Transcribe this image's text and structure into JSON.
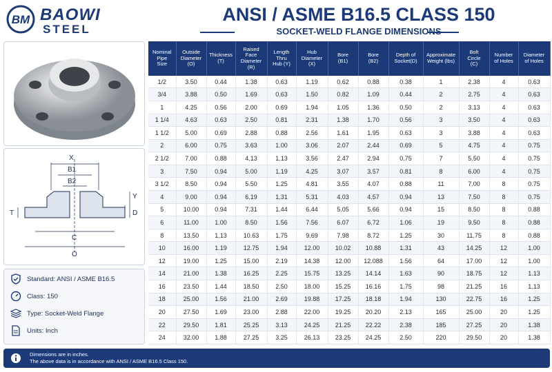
{
  "logo": {
    "mark": "BM",
    "name": "BAOWI",
    "sub": "STEEL"
  },
  "header": {
    "title": "ANSI / ASME B16.5 CLASS 150",
    "subtitle": "SOCKET-WELD FLANGE DIMENSIONS"
  },
  "diagram": {
    "labels": {
      "x": "X",
      "b1": "B1",
      "b2": "B2",
      "t": "T",
      "y": "Y",
      "d": "D",
      "c": "C",
      "o": "O"
    }
  },
  "info": [
    "Standard: ANSI / ASME B16.5",
    "Class: 150",
    "Type: Socket-Weld Flange",
    "Units: Inch"
  ],
  "table": {
    "headers": [
      "Nominal\nPipe\nSize",
      "Outside\nDiameter\n(O)",
      "Thickness\n(T)",
      "Raised\nFace\nDiameter\n(R)",
      "Length\nThru\nHub (Y)",
      "Hub\nDiameter\n(X)",
      "Bore\n(B1)",
      "Bore\n(B2)",
      "Depth of\nSocket(D)",
      "Approximate\nWeight (lbs)",
      "Bolt\nCircle\n(C)",
      "Number\nof Holes",
      "Diameter\nof Holes"
    ],
    "rows": [
      [
        "1/2",
        "3.50",
        "0.44",
        "1.38",
        "0.63",
        "1.19",
        "0.62",
        "0.88",
        "0.38",
        "1",
        "2.38",
        "4",
        "0.63"
      ],
      [
        "3/4",
        "3.88",
        "0.50",
        "1.69",
        "0.63",
        "1.50",
        "0.82",
        "1.09",
        "0.44",
        "2",
        "2.75",
        "4",
        "0.63"
      ],
      [
        "1",
        "4.25",
        "0.56",
        "2.00",
        "0.69",
        "1.94",
        "1.05",
        "1.36",
        "0.50",
        "2",
        "3.13",
        "4",
        "0.63"
      ],
      [
        "1 1/4",
        "4.63",
        "0.63",
        "2.50",
        "0.81",
        "2.31",
        "1.38",
        "1.70",
        "0.56",
        "3",
        "3.50",
        "4",
        "0.63"
      ],
      [
        "1 1/2",
        "5.00",
        "0.69",
        "2.88",
        "0.88",
        "2.56",
        "1.61",
        "1.95",
        "0.63",
        "3",
        "3.88",
        "4",
        "0.63"
      ],
      [
        "2",
        "6.00",
        "0.75",
        "3.63",
        "1.00",
        "3.06",
        "2.07",
        "2.44",
        "0.69",
        "5",
        "4.75",
        "4",
        "0.75"
      ],
      [
        "2 1/2",
        "7.00",
        "0.88",
        "4.13",
        "1.13",
        "3.56",
        "2.47",
        "2.94",
        "0.75",
        "7",
        "5.50",
        "4",
        "0.75"
      ],
      [
        "3",
        "7.50",
        "0.94",
        "5.00",
        "1.19",
        "4.25",
        "3.07",
        "3.57",
        "0.81",
        "8",
        "6.00",
        "4",
        "0.75"
      ],
      [
        "3 1/2",
        "8.50",
        "0.94",
        "5.50",
        "1.25",
        "4.81",
        "3.55",
        "4.07",
        "0.88",
        "11",
        "7.00",
        "8",
        "0.75"
      ],
      [
        "4",
        "9.00",
        "0.94",
        "6.19",
        "1.31",
        "5.31",
        "4.03",
        "4.57",
        "0.94",
        "13",
        "7.50",
        "8",
        "0.75"
      ],
      [
        "5",
        "10.00",
        "0.94",
        "7.31",
        "1.44",
        "6.44",
        "5.05",
        "5.66",
        "0.94",
        "15",
        "8.50",
        "8",
        "0.88"
      ],
      [
        "6",
        "11.00",
        "1.00",
        "8.50",
        "1.56",
        "7.56",
        "6.07",
        "6.72",
        "1.06",
        "19",
        "9.50",
        "8",
        "0.88"
      ],
      [
        "8",
        "13.50",
        "1.13",
        "10.63",
        "1.75",
        "9.69",
        "7.98",
        "8.72",
        "1.25",
        "30",
        "11.75",
        "8",
        "0.88"
      ],
      [
        "10",
        "16.00",
        "1.19",
        "12.75",
        "1.94",
        "12.00",
        "10.02",
        "10.88",
        "1.31",
        "43",
        "14.25",
        "12",
        "1.00"
      ],
      [
        "12",
        "19.00",
        "1.25",
        "15.00",
        "2.19",
        "14.38",
        "12.00",
        "12.088",
        "1.56",
        "64",
        "17.00",
        "12",
        "1.00"
      ],
      [
        "14",
        "21.00",
        "1.38",
        "16.25",
        "2.25",
        "15.75",
        "13.25",
        "14.14",
        "1.63",
        "90",
        "18.75",
        "12",
        "1.13"
      ],
      [
        "16",
        "23.50",
        "1.44",
        "18.50",
        "2.50",
        "18.00",
        "15.25",
        "16.16",
        "1.75",
        "98",
        "21.25",
        "16",
        "1.13"
      ],
      [
        "18",
        "25.00",
        "1.56",
        "21.00",
        "2.69",
        "19.88",
        "17.25",
        "18.18",
        "1.94",
        "130",
        "22.75",
        "16",
        "1.25"
      ],
      [
        "20",
        "27.50",
        "1.69",
        "23.00",
        "2.88",
        "22.00",
        "19.25",
        "20.20",
        "2.13",
        "165",
        "25.00",
        "20",
        "1.25"
      ],
      [
        "22",
        "29.50",
        "1.81",
        "25.25",
        "3.13",
        "24.25",
        "21.25",
        "22.22",
        "2.38",
        "185",
        "27.25",
        "20",
        "1.38"
      ],
      [
        "24",
        "32.00",
        "1.88",
        "27.25",
        "3.25",
        "26.13",
        "23.25",
        "24.25",
        "2.50",
        "220",
        "29.50",
        "20",
        "1.38"
      ]
    ]
  },
  "footer": {
    "notes": [
      "Dimensions are in inches.",
      "The above data is in accordance with ANSI / ASME B16.5 Class 150."
    ]
  }
}
